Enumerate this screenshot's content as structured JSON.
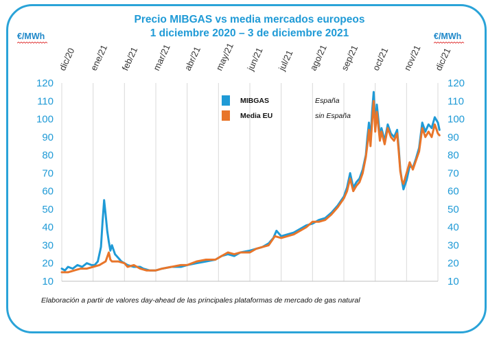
{
  "chart_data": {
    "type": "line",
    "title": "Precio MIBGAS vs media mercados europeos",
    "subtitle": "1 diciembre 2020 – 3 de diciembre 2021",
    "ylabel_left": "€/MWh",
    "ylabel_right": "€/MWh",
    "ylim": [
      10,
      120
    ],
    "yticks": [
      10,
      20,
      30,
      40,
      50,
      60,
      70,
      80,
      90,
      100,
      110,
      120
    ],
    "xticks": [
      "dic/20",
      "ene/21",
      "feb/21",
      "mar/21",
      "abr/21",
      "may/21",
      "jun/21",
      "jul/21",
      "ago/21",
      "sep/21",
      "oct/21",
      "nov/21",
      "dic/21"
    ],
    "series": [
      {
        "name": "MIBGAS",
        "description": "España",
        "color": "#1f9ad6",
        "points": [
          [
            0,
            17
          ],
          [
            0.1,
            16
          ],
          [
            0.2,
            18
          ],
          [
            0.35,
            17
          ],
          [
            0.5,
            19
          ],
          [
            0.65,
            18
          ],
          [
            0.8,
            20
          ],
          [
            0.95,
            19
          ],
          [
            1.05,
            19
          ],
          [
            1.15,
            21
          ],
          [
            1.25,
            29
          ],
          [
            1.3,
            43
          ],
          [
            1.35,
            55
          ],
          [
            1.4,
            47
          ],
          [
            1.45,
            38
          ],
          [
            1.5,
            32
          ],
          [
            1.55,
            27
          ],
          [
            1.6,
            30
          ],
          [
            1.7,
            25
          ],
          [
            1.8,
            23
          ],
          [
            1.9,
            21
          ],
          [
            2.0,
            20
          ],
          [
            2.1,
            19
          ],
          [
            2.3,
            18
          ],
          [
            2.5,
            18
          ],
          [
            2.6,
            17
          ],
          [
            2.8,
            16
          ],
          [
            3.0,
            16
          ],
          [
            3.2,
            17
          ],
          [
            3.5,
            18
          ],
          [
            3.8,
            18
          ],
          [
            4.0,
            19
          ],
          [
            4.3,
            20
          ],
          [
            4.6,
            21
          ],
          [
            4.9,
            22
          ],
          [
            5.1,
            24
          ],
          [
            5.3,
            25
          ],
          [
            5.5,
            24
          ],
          [
            5.7,
            26
          ],
          [
            6.0,
            27
          ],
          [
            6.2,
            28
          ],
          [
            6.4,
            29
          ],
          [
            6.6,
            31
          ],
          [
            6.75,
            34
          ],
          [
            6.85,
            38
          ],
          [
            7.0,
            35
          ],
          [
            7.2,
            36
          ],
          [
            7.4,
            37
          ],
          [
            7.6,
            39
          ],
          [
            7.8,
            41
          ],
          [
            8.0,
            42
          ],
          [
            8.2,
            44
          ],
          [
            8.4,
            45
          ],
          [
            8.6,
            48
          ],
          [
            8.8,
            52
          ],
          [
            9.0,
            57
          ],
          [
            9.1,
            62
          ],
          [
            9.2,
            70
          ],
          [
            9.3,
            62
          ],
          [
            9.4,
            65
          ],
          [
            9.5,
            67
          ],
          [
            9.6,
            72
          ],
          [
            9.7,
            80
          ],
          [
            9.75,
            90
          ],
          [
            9.8,
            98
          ],
          [
            9.85,
            88
          ],
          [
            9.9,
            104
          ],
          [
            9.95,
            115
          ],
          [
            10.0,
            96
          ],
          [
            10.05,
            108
          ],
          [
            10.1,
            100
          ],
          [
            10.15,
            90
          ],
          [
            10.2,
            95
          ],
          [
            10.3,
            88
          ],
          [
            10.4,
            97
          ],
          [
            10.5,
            92
          ],
          [
            10.6,
            90
          ],
          [
            10.7,
            94
          ],
          [
            10.75,
            84
          ],
          [
            10.8,
            72
          ],
          [
            10.85,
            66
          ],
          [
            10.9,
            61
          ],
          [
            11.0,
            66
          ],
          [
            11.1,
            74
          ],
          [
            11.2,
            73
          ],
          [
            11.3,
            78
          ],
          [
            11.4,
            84
          ],
          [
            11.5,
            98
          ],
          [
            11.6,
            93
          ],
          [
            11.7,
            97
          ],
          [
            11.8,
            95
          ],
          [
            11.9,
            101
          ],
          [
            12.0,
            98
          ],
          [
            12.05,
            94
          ]
        ]
      },
      {
        "name": "Media EU",
        "description": "sin España",
        "color": "#e8752a",
        "points": [
          [
            0,
            15
          ],
          [
            0.2,
            15
          ],
          [
            0.4,
            16
          ],
          [
            0.6,
            17
          ],
          [
            0.8,
            17
          ],
          [
            1.0,
            18
          ],
          [
            1.2,
            19
          ],
          [
            1.3,
            20
          ],
          [
            1.4,
            21
          ],
          [
            1.5,
            26
          ],
          [
            1.55,
            22
          ],
          [
            1.6,
            21
          ],
          [
            1.8,
            21
          ],
          [
            2.0,
            20
          ],
          [
            2.1,
            18
          ],
          [
            2.3,
            19
          ],
          [
            2.5,
            17
          ],
          [
            2.7,
            16
          ],
          [
            2.9,
            16
          ],
          [
            3.0,
            16
          ],
          [
            3.2,
            17
          ],
          [
            3.5,
            18
          ],
          [
            3.8,
            19
          ],
          [
            4.0,
            19
          ],
          [
            4.3,
            21
          ],
          [
            4.6,
            22
          ],
          [
            4.9,
            22
          ],
          [
            5.1,
            24
          ],
          [
            5.3,
            26
          ],
          [
            5.5,
            25
          ],
          [
            5.7,
            26
          ],
          [
            6.0,
            26
          ],
          [
            6.2,
            28
          ],
          [
            6.4,
            29
          ],
          [
            6.6,
            30
          ],
          [
            6.8,
            35
          ],
          [
            7.0,
            34
          ],
          [
            7.2,
            35
          ],
          [
            7.4,
            36
          ],
          [
            7.6,
            38
          ],
          [
            7.8,
            40
          ],
          [
            8.0,
            43
          ],
          [
            8.2,
            43
          ],
          [
            8.4,
            44
          ],
          [
            8.6,
            47
          ],
          [
            8.8,
            51
          ],
          [
            9.0,
            56
          ],
          [
            9.1,
            60
          ],
          [
            9.2,
            67
          ],
          [
            9.3,
            60
          ],
          [
            9.4,
            63
          ],
          [
            9.5,
            65
          ],
          [
            9.6,
            70
          ],
          [
            9.7,
            79
          ],
          [
            9.75,
            86
          ],
          [
            9.8,
            94
          ],
          [
            9.85,
            85
          ],
          [
            9.9,
            98
          ],
          [
            9.95,
            110
          ],
          [
            10.0,
            93
          ],
          [
            10.05,
            104
          ],
          [
            10.1,
            96
          ],
          [
            10.15,
            88
          ],
          [
            10.2,
            93
          ],
          [
            10.3,
            86
          ],
          [
            10.4,
            95
          ],
          [
            10.5,
            90
          ],
          [
            10.6,
            88
          ],
          [
            10.7,
            92
          ],
          [
            10.75,
            82
          ],
          [
            10.8,
            71
          ],
          [
            10.85,
            66
          ],
          [
            10.9,
            64
          ],
          [
            11.0,
            70
          ],
          [
            11.1,
            76
          ],
          [
            11.2,
            72
          ],
          [
            11.3,
            77
          ],
          [
            11.4,
            82
          ],
          [
            11.5,
            95
          ],
          [
            11.6,
            90
          ],
          [
            11.7,
            93
          ],
          [
            11.8,
            90
          ],
          [
            11.9,
            97
          ],
          [
            12.0,
            92
          ],
          [
            12.05,
            91
          ]
        ]
      }
    ]
  },
  "footnote": "Elaboración a partir de valores day-ahead de las principales plataformas de mercado de gas natural"
}
